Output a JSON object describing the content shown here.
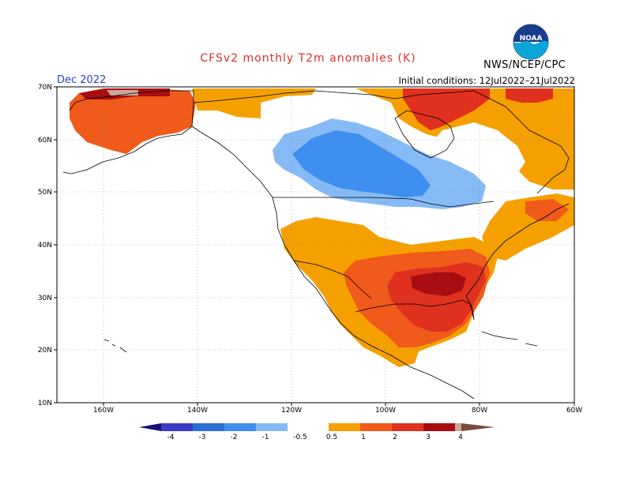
{
  "header": {
    "title": "CFSv2 monthly T2m anomalies (K)",
    "valid_month": "Dec 2022",
    "initial_conditions": "Initial conditions: 12Jul2022–21Jul2022",
    "agency": "NWS/NCEP/CPC",
    "logo_text": "NOAA"
  },
  "axes": {
    "lat_labels": [
      "70N",
      "60N",
      "50N",
      "40N",
      "30N",
      "20N",
      "10N"
    ],
    "lon_labels": [
      "160W",
      "140W",
      "120W",
      "100W",
      "80W",
      "60W"
    ]
  },
  "colorbar": {
    "ticks": [
      "-4",
      "-3",
      "-2",
      "-1",
      "-0.5",
      "0.5",
      "1",
      "2",
      "3",
      "4"
    ],
    "colors": {
      "lt_m4": "#1a0f7a",
      "m4_m3": "#3b3bc4",
      "m3_m2": "#2a6fd6",
      "m2_m1": "#3f8ff0",
      "m1_m05": "#86baf6",
      "neutral": "#ffffff",
      "p05_p1": "#f5a000",
      "p1_p2": "#f05a1a",
      "p2_p3": "#e0301e",
      "p3_p4": "#a80d12",
      "p4_p5": "#c9a89a",
      "gt_p5": "#7a4a3a"
    }
  },
  "anomaly_regions": [
    {
      "name": "alaska-warm",
      "category": "1 to 2 K"
    },
    {
      "name": "alaska-north-coast",
      "category": "3 to 4 K"
    },
    {
      "name": "canada-arctic-warm",
      "category": "0.5 to 1 K"
    },
    {
      "name": "hudson-bay-warm",
      "category": "1 to 2 K"
    },
    {
      "name": "central-canada-cold",
      "category": "-1 to -2 K"
    },
    {
      "name": "great-plains-south-warm",
      "category": "1 to 2 K"
    },
    {
      "name": "southeast-warm",
      "category": "2 to 3 K"
    },
    {
      "name": "west-mexico-warm",
      "category": "0.5 to 1 K"
    },
    {
      "name": "northeast-warm",
      "category": "0.5 to 1 K"
    }
  ]
}
